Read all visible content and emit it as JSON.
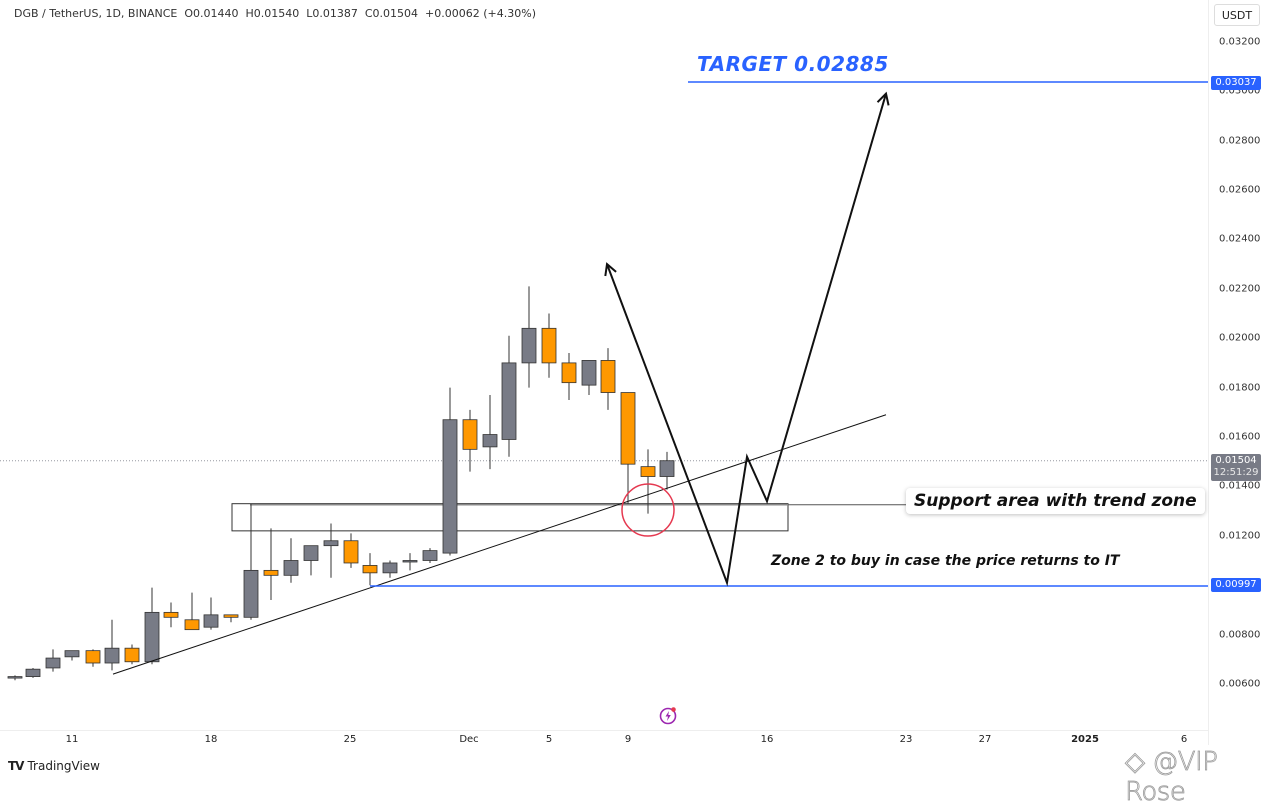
{
  "header": {
    "symbol": "DGB / TetherUS, 1D, BINANCE",
    "open": "O0.01440",
    "high": "H0.01540",
    "low": "L0.01387",
    "close": "C0.01504",
    "change": "+0.00062 (+4.30%)"
  },
  "price_axis": {
    "currency": "USDT",
    "ticks": [
      "0.03200",
      "0.03000",
      "0.02800",
      "0.02600",
      "0.02400",
      "0.02200",
      "0.02000",
      "0.01800",
      "0.01600",
      "0.01400",
      "0.01200",
      "0.00800",
      "0.00600"
    ],
    "labels": {
      "target_line": "0.03037",
      "current_price": "0.01504",
      "countdown": "12:51:29",
      "zone2_line": "0.00997"
    }
  },
  "time_axis": {
    "ticks": [
      {
        "label": "11",
        "x": 72
      },
      {
        "label": "18",
        "x": 211
      },
      {
        "label": "25",
        "x": 350
      },
      {
        "label": "Dec",
        "x": 469
      },
      {
        "label": "5",
        "x": 549
      },
      {
        "label": "9",
        "x": 628
      },
      {
        "label": "16",
        "x": 767
      },
      {
        "label": "23",
        "x": 906
      },
      {
        "label": "27",
        "x": 985
      },
      {
        "label": "2025",
        "x": 1085,
        "bold": true
      },
      {
        "label": "6",
        "x": 1184
      }
    ]
  },
  "annotations": {
    "target": "TARGET 0.02885",
    "support": "Support area with trend zone",
    "zone2": "Zone 2 to buy in case the price returns to IT"
  },
  "branding": {
    "logo_mark": "TV",
    "logo_text": "TradingView",
    "watermark": "@VIP Rose"
  },
  "colors": {
    "bull": "#787b86",
    "bear": "#ff9800",
    "accent": "#2962ff",
    "current_price_bg": "#787b86",
    "circle": "#e53950"
  },
  "chart_data": {
    "type": "candlestick",
    "title": "DGB / TetherUS, 1D, BINANCE",
    "xlabel": "",
    "ylabel": "USDT",
    "ylim": [
      0.005,
      0.0325
    ],
    "x_tick_labels": [
      "11",
      "18",
      "25",
      "Dec",
      "5",
      "9",
      "16",
      "23",
      "27",
      "2025",
      "6"
    ],
    "candles": [
      {
        "x": 15,
        "o": 0.0063,
        "h": 0.00635,
        "l": 0.00615,
        "c": 0.0063
      },
      {
        "x": 33,
        "o": 0.0063,
        "h": 0.00665,
        "l": 0.00625,
        "c": 0.0066
      },
      {
        "x": 53,
        "o": 0.00665,
        "h": 0.0074,
        "l": 0.0065,
        "c": 0.00705
      },
      {
        "x": 72,
        "o": 0.0071,
        "h": 0.00735,
        "l": 0.00695,
        "c": 0.00735
      },
      {
        "x": 93,
        "o": 0.00735,
        "h": 0.0074,
        "l": 0.0067,
        "c": 0.00685
      },
      {
        "x": 112,
        "o": 0.00685,
        "h": 0.0086,
        "l": 0.00655,
        "c": 0.00745
      },
      {
        "x": 132,
        "o": 0.00745,
        "h": 0.0076,
        "l": 0.0068,
        "c": 0.0069
      },
      {
        "x": 152,
        "o": 0.0069,
        "h": 0.0099,
        "l": 0.0068,
        "c": 0.0089
      },
      {
        "x": 171,
        "o": 0.0089,
        "h": 0.0093,
        "l": 0.0083,
        "c": 0.0087
      },
      {
        "x": 192,
        "o": 0.0086,
        "h": 0.0097,
        "l": 0.0084,
        "c": 0.0082
      },
      {
        "x": 211,
        "o": 0.0083,
        "h": 0.0095,
        "l": 0.0082,
        "c": 0.0088
      },
      {
        "x": 231,
        "o": 0.0088,
        "h": 0.0088,
        "l": 0.0085,
        "c": 0.0087
      },
      {
        "x": 251,
        "o": 0.0087,
        "h": 0.0133,
        "l": 0.0086,
        "c": 0.0106
      },
      {
        "x": 271,
        "o": 0.0106,
        "h": 0.0123,
        "l": 0.0094,
        "c": 0.0104
      },
      {
        "x": 291,
        "o": 0.0104,
        "h": 0.0119,
        "l": 0.0101,
        "c": 0.011
      },
      {
        "x": 311,
        "o": 0.011,
        "h": 0.0116,
        "l": 0.0104,
        "c": 0.0116
      },
      {
        "x": 331,
        "o": 0.0116,
        "h": 0.0125,
        "l": 0.0103,
        "c": 0.0118
      },
      {
        "x": 351,
        "o": 0.0118,
        "h": 0.0121,
        "l": 0.0107,
        "c": 0.0109
      },
      {
        "x": 370,
        "o": 0.0108,
        "h": 0.0113,
        "l": 0.01,
        "c": 0.0105
      },
      {
        "x": 390,
        "o": 0.0105,
        "h": 0.011,
        "l": 0.0103,
        "c": 0.0109
      },
      {
        "x": 410,
        "o": 0.011,
        "h": 0.0113,
        "l": 0.0106,
        "c": 0.011
      },
      {
        "x": 430,
        "o": 0.011,
        "h": 0.0115,
        "l": 0.0109,
        "c": 0.0114
      },
      {
        "x": 450,
        "o": 0.0113,
        "h": 0.018,
        "l": 0.0112,
        "c": 0.0167
      },
      {
        "x": 470,
        "o": 0.0167,
        "h": 0.0171,
        "l": 0.0146,
        "c": 0.0155
      },
      {
        "x": 490,
        "o": 0.0156,
        "h": 0.0177,
        "l": 0.0147,
        "c": 0.0161
      },
      {
        "x": 509,
        "o": 0.0159,
        "h": 0.0201,
        "l": 0.0152,
        "c": 0.019
      },
      {
        "x": 529,
        "o": 0.019,
        "h": 0.0221,
        "l": 0.018,
        "c": 0.0204
      },
      {
        "x": 549,
        "o": 0.0204,
        "h": 0.021,
        "l": 0.0184,
        "c": 0.019
      },
      {
        "x": 569,
        "o": 0.019,
        "h": 0.0194,
        "l": 0.0175,
        "c": 0.0182
      },
      {
        "x": 589,
        "o": 0.0181,
        "h": 0.0191,
        "l": 0.0177,
        "c": 0.0191
      },
      {
        "x": 608,
        "o": 0.0191,
        "h": 0.0196,
        "l": 0.0171,
        "c": 0.0178
      },
      {
        "x": 628,
        "o": 0.0178,
        "h": 0.0178,
        "l": 0.0133,
        "c": 0.0149
      },
      {
        "x": 648,
        "o": 0.0148,
        "h": 0.0155,
        "l": 0.0129,
        "c": 0.0144
      },
      {
        "x": 667,
        "o": 0.0144,
        "h": 0.0154,
        "l": 0.01387,
        "c": 0.01504
      }
    ],
    "horizontal_lines": [
      {
        "price": 0.03037,
        "label": "0.03037",
        "color": "#2962ff",
        "x1": 688
      },
      {
        "price": 0.00997,
        "label": "0.00997",
        "color": "#2962ff",
        "x1": 370
      }
    ],
    "support_box": {
      "x1": 232,
      "x2": 788,
      "top": 0.0133,
      "bottom": 0.0122
    },
    "trendline": {
      "x1": 113,
      "p1": 0.0064,
      "x2": 886,
      "p2": 0.0169
    },
    "projection_paths": [
      {
        "points": [
          [
            607,
            0.023
          ],
          [
            727,
            0.0101
          ],
          [
            747,
            0.0152
          ],
          [
            767,
            0.0134
          ],
          [
            886,
            0.0299
          ]
        ]
      }
    ],
    "current_price": 0.01504
  }
}
